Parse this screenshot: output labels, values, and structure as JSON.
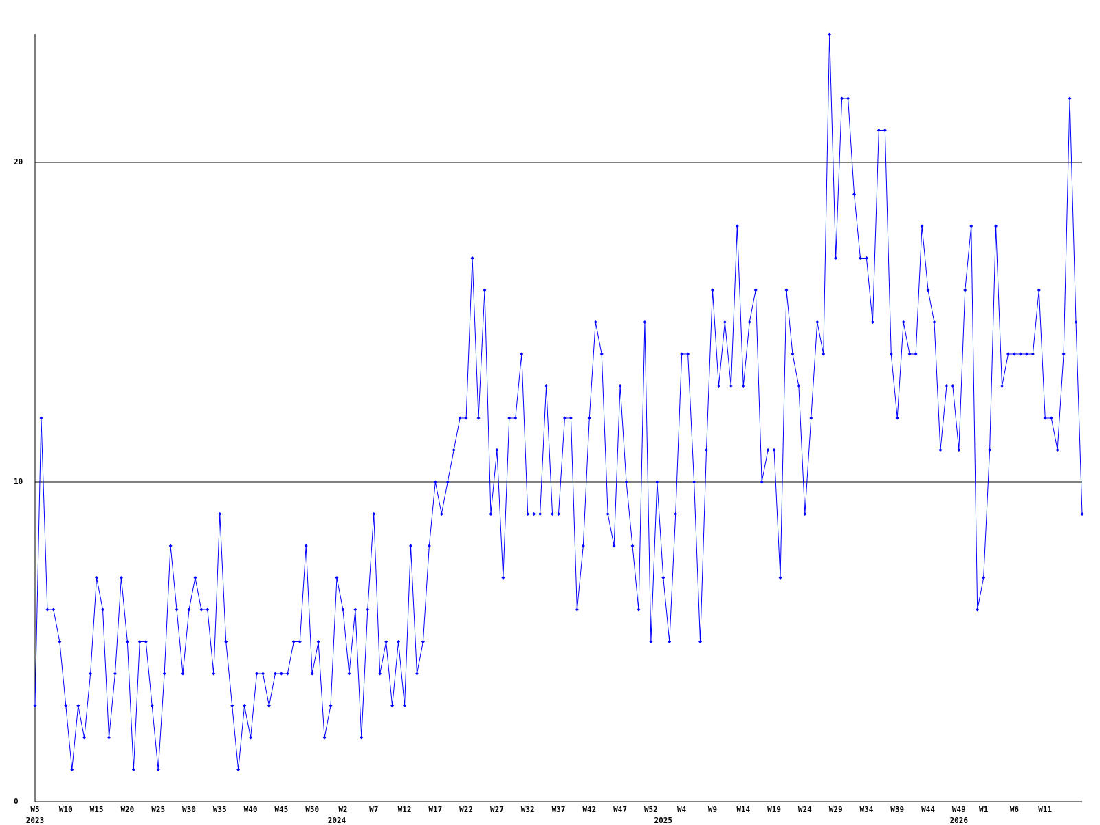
{
  "chart_data": {
    "type": "line",
    "categories": [
      "W5",
      null,
      null,
      null,
      null,
      "W10",
      null,
      null,
      null,
      null,
      "W15",
      null,
      null,
      null,
      null,
      "W20",
      null,
      null,
      null,
      null,
      "W25",
      null,
      null,
      null,
      null,
      "W30",
      null,
      null,
      null,
      null,
      "W35",
      null,
      null,
      null,
      null,
      "W40",
      null,
      null,
      null,
      null,
      "W45",
      null,
      null,
      null,
      null,
      "W50",
      null,
      null,
      null,
      null,
      "W2",
      null,
      null,
      null,
      null,
      "W7",
      null,
      null,
      null,
      null,
      "W12",
      null,
      null,
      null,
      null,
      "W17",
      null,
      null,
      null,
      null,
      "W22",
      null,
      null,
      null,
      null,
      "W27",
      null,
      null,
      null,
      null,
      "W32",
      null,
      null,
      null,
      null,
      "W37",
      null,
      null,
      null,
      null,
      "W42",
      null,
      null,
      null,
      null,
      "W47",
      null,
      null,
      null,
      null,
      "W52",
      null,
      null,
      null,
      null,
      "W4",
      null,
      null,
      null,
      null,
      "W9",
      null,
      null,
      null,
      null,
      "W14",
      null,
      null,
      null,
      null,
      "W19",
      null,
      null,
      null,
      null,
      "W24",
      null,
      null,
      null,
      null,
      "W29",
      null,
      null,
      null,
      null,
      "W34",
      null,
      null,
      null,
      null,
      "W39",
      null,
      null,
      null,
      null,
      "W44",
      null,
      null,
      null,
      null,
      "W49",
      null,
      null,
      null,
      "W1",
      null,
      null,
      null,
      null,
      "W6",
      null,
      null,
      null,
      null,
      "W11",
      null,
      null,
      null,
      null,
      null,
      null
    ],
    "years": [
      "2023",
      null,
      null,
      null,
      null,
      null,
      null,
      null,
      null,
      null,
      null,
      null,
      null,
      null,
      null,
      null,
      null,
      null,
      null,
      null,
      null,
      null,
      null,
      null,
      null,
      null,
      null,
      null,
      null,
      null,
      null,
      null,
      null,
      null,
      null,
      null,
      null,
      null,
      null,
      null,
      null,
      null,
      null,
      null,
      null,
      null,
      null,
      null,
      null,
      "2024",
      null,
      null,
      null,
      null,
      null,
      null,
      null,
      null,
      null,
      null,
      null,
      null,
      null,
      null,
      null,
      null,
      null,
      null,
      null,
      null,
      null,
      null,
      null,
      null,
      null,
      null,
      null,
      null,
      null,
      null,
      null,
      null,
      null,
      null,
      null,
      null,
      null,
      null,
      null,
      null,
      null,
      null,
      null,
      null,
      null,
      null,
      null,
      null,
      null,
      null,
      null,
      null,
      "2025",
      null,
      null,
      null,
      null,
      null,
      null,
      null,
      null,
      null,
      null,
      null,
      null,
      null,
      null,
      null,
      null,
      null,
      null,
      null,
      null,
      null,
      null,
      null,
      null,
      null,
      null,
      null,
      null,
      null,
      null,
      null,
      null,
      null,
      null,
      null,
      null,
      null,
      null,
      null,
      null,
      null,
      null,
      null,
      null,
      null,
      null,
      null,
      "2026",
      null,
      null,
      null,
      null,
      null,
      null,
      null,
      null,
      null,
      null,
      null,
      null,
      null,
      null,
      null,
      null
    ],
    "series": [
      {
        "color": "#0000ff",
        "values": [
          3,
          12,
          6,
          6,
          5,
          3,
          1,
          3,
          2,
          4,
          7,
          6,
          2,
          4,
          7,
          5,
          1,
          5,
          5,
          3,
          1,
          4,
          8,
          6,
          4,
          6,
          7,
          6,
          6,
          4,
          9,
          5,
          3,
          1,
          3,
          2,
          4,
          4,
          3,
          4,
          4,
          4,
          5,
          5,
          8,
          4,
          5,
          2,
          3,
          7,
          6,
          4,
          6,
          2,
          6,
          9,
          4,
          5,
          3,
          5,
          3,
          8,
          4,
          5,
          8,
          10,
          9,
          10,
          11,
          12,
          12,
          17,
          12,
          16,
          9,
          11,
          7,
          12,
          12,
          14,
          9,
          9,
          9,
          13,
          9,
          9,
          12,
          12,
          6,
          8,
          12,
          15,
          14,
          9,
          8,
          13,
          10,
          8,
          6,
          15,
          5,
          10,
          7,
          5,
          9,
          14,
          14,
          10,
          5,
          11,
          16,
          13,
          15,
          13,
          18,
          13,
          15,
          16,
          10,
          11,
          11,
          7,
          16,
          14,
          13,
          9,
          12,
          15,
          14,
          24,
          17,
          22,
          22,
          19,
          17,
          17,
          15,
          21,
          21,
          14,
          12,
          15,
          14,
          14,
          18,
          16,
          15,
          11,
          13,
          13,
          11,
          16,
          18,
          6,
          7,
          11,
          18,
          13,
          14,
          14,
          14,
          14,
          14,
          16,
          12,
          12,
          11,
          14,
          22,
          15,
          9
        ]
      }
    ],
    "ylim": [
      0,
      24
    ],
    "yticks": [
      0,
      10,
      20
    ],
    "grid": true
  }
}
